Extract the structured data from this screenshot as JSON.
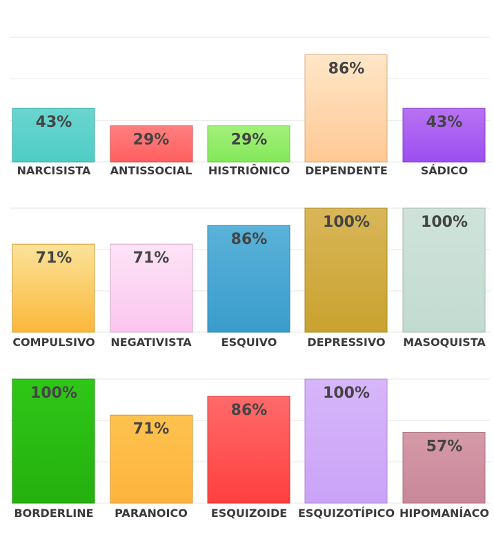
{
  "chart_data": [
    {
      "type": "bar",
      "categories": [
        "NARCISISTA",
        "ANTISSOCIAL",
        "HISTRIÔNICO",
        "DEPENDENTE",
        "SÁDICO"
      ],
      "values": [
        43,
        29,
        29,
        86,
        43
      ],
      "value_labels": [
        "43%",
        "29%",
        "29%",
        "86%",
        "43%"
      ],
      "ylim": [
        0,
        100
      ],
      "grid": true,
      "colors": [
        [
          "#6ad5cf",
          "#4ecdc5"
        ],
        [
          "#ff7f7f",
          "#ff5f5f"
        ],
        [
          "#a3f07a",
          "#84e85a"
        ],
        [
          "#ffe7c8",
          "#ffc894"
        ],
        [
          "#b872f3",
          "#9b4ff0"
        ]
      ]
    },
    {
      "type": "bar",
      "categories": [
        "COMPULSIVO",
        "NEGATIVISTA",
        "ESQUIVO",
        "DEPRESSIVO",
        "MASOQUISTA"
      ],
      "values": [
        71,
        71,
        86,
        100,
        100
      ],
      "value_labels": [
        "71%",
        "71%",
        "86%",
        "100%",
        "100%"
      ],
      "ylim": [
        0,
        100
      ],
      "grid": true,
      "colors": [
        [
          "#fbe39a",
          "#fbb73a"
        ],
        [
          "#fde3f6",
          "#fbc6ee"
        ],
        [
          "#5ab2d8",
          "#3a9ccc"
        ],
        [
          "#d9b659",
          "#c9a22e"
        ],
        [
          "#cfe3da",
          "#c2dbd0"
        ]
      ]
    },
    {
      "type": "bar",
      "categories": [
        "BORDERLINE",
        "PARANOICO",
        "ESQUIZOIDE",
        "ESQUIZOTÍPICO",
        "HIPOMANÍACO"
      ],
      "values": [
        100,
        71,
        86,
        100,
        57
      ],
      "value_labels": [
        "100%",
        "71%",
        "86%",
        "100%",
        "57%"
      ],
      "ylim": [
        0,
        100
      ],
      "grid": true,
      "colors": [
        [
          "#2fc717",
          "#25b00f"
        ],
        [
          "#fec24f",
          "#fdb43d"
        ],
        [
          "#ff6a6a",
          "#ff3f3f"
        ],
        [
          "#d7b6fa",
          "#caa3f7"
        ],
        [
          "#d59aa8",
          "#c9879a"
        ]
      ]
    }
  ]
}
